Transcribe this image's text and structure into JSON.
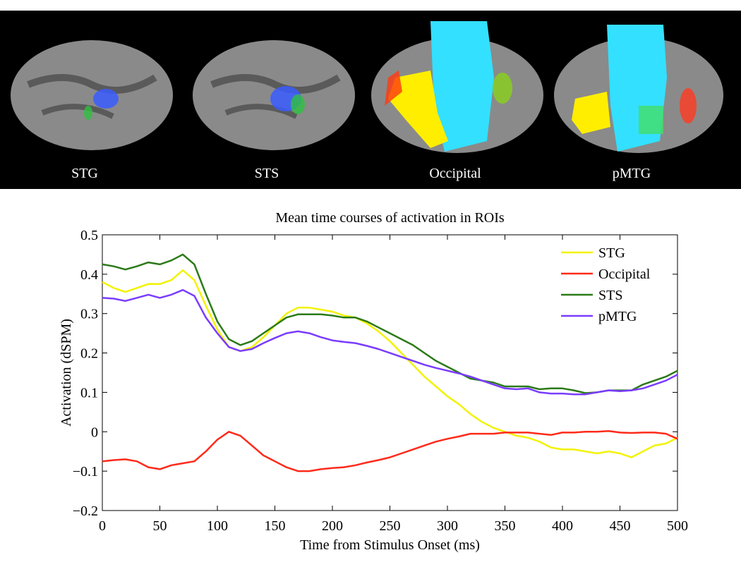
{
  "brain_panels": [
    "STG",
    "STS",
    "Occipital",
    "pMTG"
  ],
  "chart_data": {
    "type": "line",
    "title": "Mean time courses of activation in ROIs",
    "x_label": "Time from Stimulus Onset (ms)",
    "y_label": "Activation (dSPM)",
    "x": [
      0,
      10,
      20,
      30,
      40,
      50,
      60,
      70,
      80,
      90,
      100,
      110,
      120,
      130,
      140,
      150,
      160,
      170,
      180,
      190,
      200,
      210,
      220,
      230,
      240,
      250,
      260,
      270,
      280,
      290,
      300,
      310,
      320,
      330,
      340,
      350,
      360,
      370,
      380,
      390,
      400,
      410,
      420,
      430,
      440,
      450,
      460,
      470,
      480,
      490,
      500
    ],
    "series": [
      {
        "name": "STG",
        "color": "#f2f200",
        "values": [
          0.38,
          0.365,
          0.355,
          0.365,
          0.375,
          0.375,
          0.385,
          0.41,
          0.385,
          0.32,
          0.26,
          0.215,
          0.205,
          0.215,
          0.24,
          0.27,
          0.3,
          0.315,
          0.315,
          0.31,
          0.305,
          0.295,
          0.29,
          0.275,
          0.255,
          0.23,
          0.2,
          0.17,
          0.14,
          0.115,
          0.09,
          0.07,
          0.045,
          0.025,
          0.01,
          0.0,
          -0.01,
          -0.015,
          -0.025,
          -0.04,
          -0.045,
          -0.045,
          -0.05,
          -0.055,
          -0.05,
          -0.055,
          -0.065,
          -0.05,
          -0.035,
          -0.03,
          -0.015
        ]
      },
      {
        "name": "Occipital",
        "color": "#ff2a1a",
        "values": [
          -0.075,
          -0.072,
          -0.07,
          -0.075,
          -0.09,
          -0.095,
          -0.085,
          -0.08,
          -0.075,
          -0.05,
          -0.02,
          0.0,
          -0.01,
          -0.035,
          -0.06,
          -0.075,
          -0.09,
          -0.1,
          -0.1,
          -0.095,
          -0.092,
          -0.09,
          -0.085,
          -0.078,
          -0.072,
          -0.065,
          -0.055,
          -0.045,
          -0.035,
          -0.025,
          -0.018,
          -0.012,
          -0.005,
          -0.005,
          -0.005,
          -0.002,
          -0.002,
          -0.002,
          -0.005,
          -0.008,
          -0.002,
          -0.002,
          0.0,
          0.0,
          0.002,
          -0.002,
          -0.003,
          -0.002,
          -0.002,
          -0.005,
          -0.018
        ]
      },
      {
        "name": "STS",
        "color": "#2b7a18",
        "values": [
          0.425,
          0.42,
          0.412,
          0.42,
          0.43,
          0.425,
          0.435,
          0.45,
          0.425,
          0.35,
          0.28,
          0.235,
          0.22,
          0.23,
          0.25,
          0.27,
          0.29,
          0.298,
          0.298,
          0.298,
          0.295,
          0.29,
          0.29,
          0.28,
          0.265,
          0.25,
          0.235,
          0.22,
          0.2,
          0.18,
          0.165,
          0.15,
          0.135,
          0.13,
          0.125,
          0.115,
          0.115,
          0.115,
          0.108,
          0.11,
          0.11,
          0.105,
          0.098,
          0.1,
          0.105,
          0.105,
          0.105,
          0.12,
          0.13,
          0.14,
          0.155
        ]
      },
      {
        "name": "pMTG",
        "color": "#7a3cff",
        "values": [
          0.34,
          0.338,
          0.332,
          0.34,
          0.348,
          0.34,
          0.348,
          0.36,
          0.345,
          0.29,
          0.25,
          0.215,
          0.205,
          0.21,
          0.225,
          0.238,
          0.25,
          0.255,
          0.25,
          0.24,
          0.232,
          0.228,
          0.225,
          0.218,
          0.21,
          0.2,
          0.19,
          0.18,
          0.17,
          0.162,
          0.155,
          0.148,
          0.14,
          0.13,
          0.12,
          0.11,
          0.108,
          0.11,
          0.1,
          0.097,
          0.097,
          0.095,
          0.095,
          0.1,
          0.105,
          0.103,
          0.105,
          0.11,
          0.12,
          0.13,
          0.145
        ]
      }
    ],
    "xlim": [
      0,
      500
    ],
    "xticks": [
      0,
      50,
      100,
      150,
      200,
      250,
      300,
      350,
      400,
      450,
      500
    ],
    "ylim": [
      -0.2,
      0.5
    ],
    "yticks": [
      {
        "value": -0.2,
        "label": "−0.2"
      },
      {
        "value": -0.1,
        "label": "−0.1"
      },
      0,
      0.1,
      0.2,
      0.3,
      0.4,
      0.5
    ],
    "legend": "upper right",
    "grid": false
  }
}
